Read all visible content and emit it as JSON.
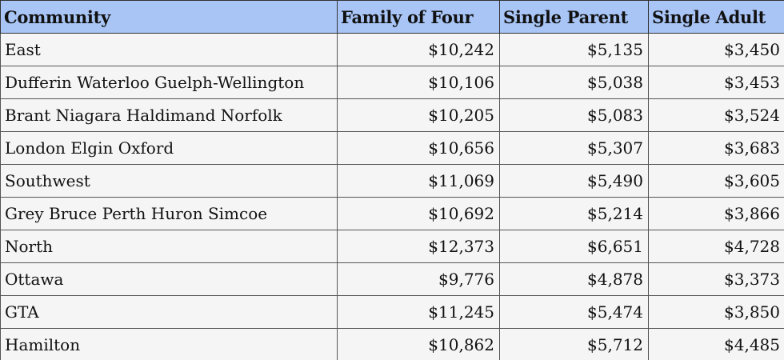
{
  "chart_data": {
    "type": "table",
    "columns": [
      "Community",
      "Family of Four",
      "Single Parent",
      "Single Adult"
    ],
    "rows": [
      [
        "East",
        "$10,242",
        "$5,135",
        "$3,450"
      ],
      [
        "Dufferin Waterloo Guelph-Wellington",
        "$10,106",
        "$5,038",
        "$3,453"
      ],
      [
        "Brant Niagara Haldimand Norfolk",
        "$10,205",
        "$5,083",
        "$3,524"
      ],
      [
        "London Elgin Oxford",
        "$10,656",
        "$5,307",
        "$3,683"
      ],
      [
        "Southwest",
        "$11,069",
        "$5,490",
        "$3,605"
      ],
      [
        "Grey Bruce Perth Huron Simcoe",
        "$10,692",
        "$5,214",
        "$3,866"
      ],
      [
        "North",
        "$12,373",
        "$6,651",
        "$4,728"
      ],
      [
        "Ottawa",
        "$9,776",
        "$4,878",
        "$3,373"
      ],
      [
        "GTA",
        "$11,245",
        "$5,474",
        "$3,850"
      ],
      [
        "Hamilton",
        "$10,862",
        "$5,712",
        "$4,485"
      ]
    ]
  },
  "colors": {
    "header_background": "#a8c5f6",
    "cell_background": "#f5f5f5",
    "border": "#555555"
  }
}
